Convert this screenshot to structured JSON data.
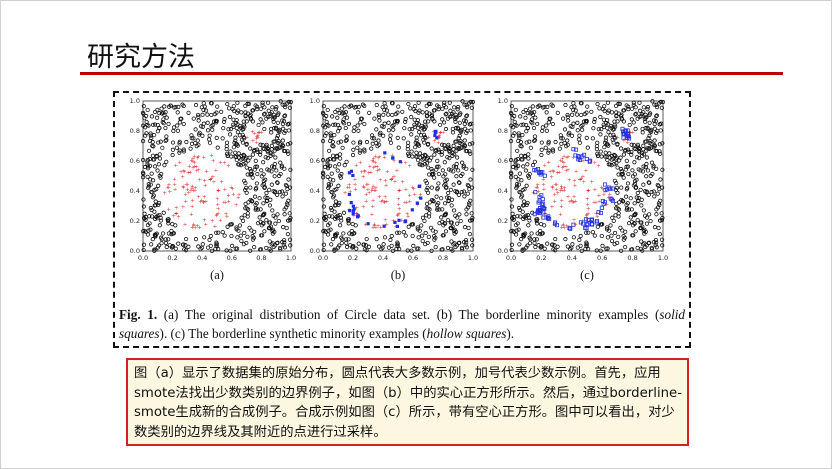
{
  "slide": {
    "title": "研究方法"
  },
  "figure": {
    "panel_labels": [
      "(a)",
      "(b)",
      "(c)"
    ],
    "x_ticks": [
      "0.0",
      "0.2",
      "0.4",
      "0.6",
      "0.8",
      "1.0"
    ],
    "y_ticks": [
      "0.0",
      "0.2",
      "0.4",
      "0.6",
      "0.8",
      "1.0"
    ],
    "caption": {
      "fig_label": "Fig. 1.",
      "part1": " (a) The original distribution of Circle data set. (b) The borderline minority examples (",
      "solid": "solid squares",
      "part2": "). (c) The borderline synthetic minority examples (",
      "hollow": "hollow squares",
      "part3": ")."
    },
    "colors": {
      "majority": "#111111",
      "minority": "#e03030",
      "borderline": "#1f2fe0"
    }
  },
  "description": {
    "text": "图（a）显示了数据集的原始分布，圆点代表大多数示例，加号代表少数示例。首先，应用smote法找出少数类别的边界例子，如图（b）中的实心正方形所示。然后，通过borderline-smote生成新的合成例子。合成示例如图（c）所示，带有空心正方形。图中可以看出，对少数类别的边界线及其附近的点进行过采样。"
  },
  "chart_data": [
    {
      "type": "scatter",
      "title": "",
      "xlabel": "(a)",
      "ylabel": "",
      "xlim": [
        0,
        1
      ],
      "ylim": [
        0,
        1
      ],
      "series": [],
      "circle": {
        "cx": 0.4,
        "cy": 0.4,
        "r": 0.28
      },
      "minority_cluster": {
        "cx": 0.75,
        "cy": 0.78,
        "r": 0.07
      }
    },
    {
      "type": "scatter",
      "title": "",
      "xlabel": "(b)",
      "ylabel": "",
      "xlim": [
        0,
        1
      ],
      "ylim": [
        0,
        1
      ],
      "series": []
    },
    {
      "type": "scatter",
      "title": "",
      "xlabel": "(c)",
      "ylabel": "",
      "xlim": [
        0,
        1
      ],
      "ylim": [
        0,
        1
      ],
      "series": []
    }
  ]
}
